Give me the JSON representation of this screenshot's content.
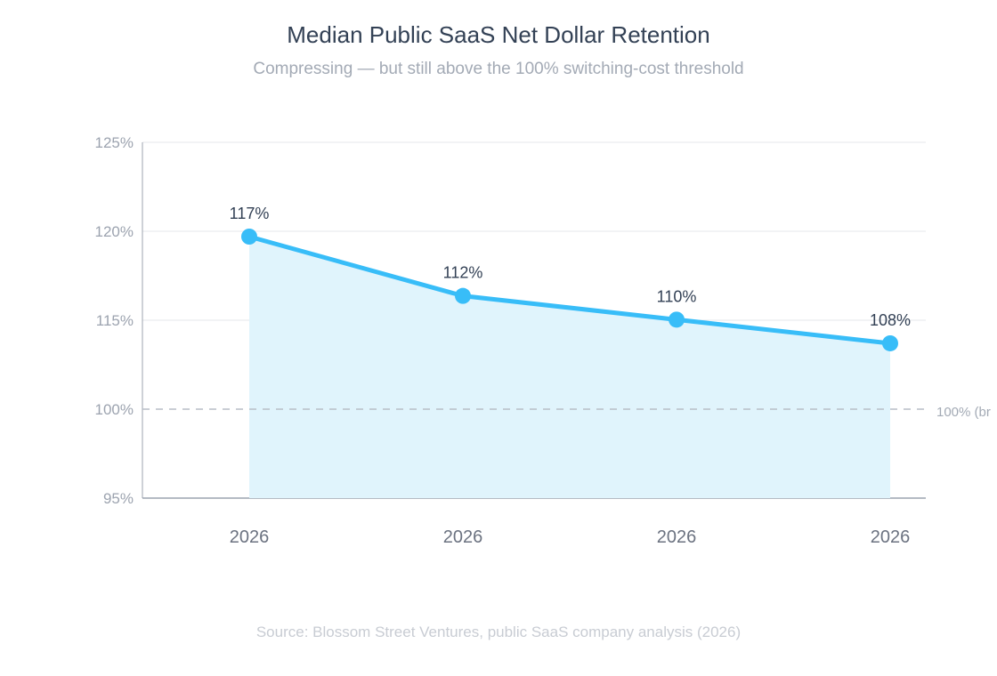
{
  "chart_data": {
    "type": "line",
    "title": "Median Public SaaS Net Dollar Retention",
    "subtitle": "Compressing — but still above the 100% switching-cost threshold",
    "source": "Source: Blossom Street Ventures, public SaaS company analysis (2026)",
    "categories": [
      "2026",
      "2026",
      "2026",
      "2026"
    ],
    "values": [
      117,
      112,
      110,
      108
    ],
    "data_labels": [
      "117%",
      "112%",
      "110%",
      "108%"
    ],
    "y_tick_labels": [
      "125%",
      "120%",
      "115%",
      "100%",
      "95%"
    ],
    "reference_line": {
      "value": 100,
      "label": "100% (br"
    },
    "grid": true,
    "area_fill": true,
    "colors": {
      "line": "#38bdf8",
      "area": "#e0f4fc",
      "title": "#334155",
      "muted": "#9ca3af",
      "grid": "#e5e7eb"
    }
  }
}
